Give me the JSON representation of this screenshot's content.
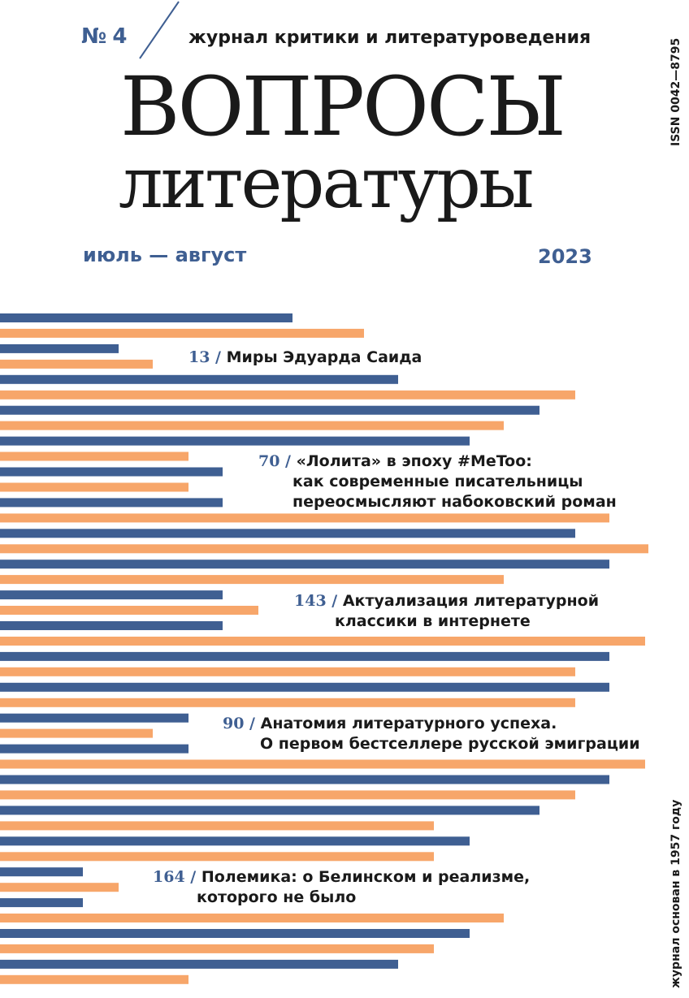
{
  "header": {
    "issue": "№ 4",
    "subtitle": "журнал критики и литературоведения",
    "title_line1": "ВОПРОСЫ",
    "title_line2": "литературы",
    "months": "июль — август",
    "year": "2023"
  },
  "side": {
    "issn": "ISSN 0042—8795",
    "founded": "журнал основан в 1957 году"
  },
  "colors": {
    "blue": "#3f5f92",
    "orange": "#f7a66a",
    "text": "#1a1a1a"
  },
  "bar_lengths": [
    360,
    448,
    146,
    188,
    490,
    708,
    664,
    620,
    578,
    232,
    274,
    232,
    274,
    750,
    708,
    798,
    750,
    620,
    274,
    318,
    274,
    794,
    750,
    708,
    750,
    708,
    232,
    188,
    232,
    794,
    750,
    708,
    664,
    534,
    578,
    534,
    102,
    146,
    102,
    620,
    578,
    534,
    490,
    232
  ],
  "contents": [
    {
      "page": "13 /",
      "lines": [
        "Миры Эдуарда Саида"
      ]
    },
    {
      "page": "70 /",
      "lines": [
        "«Лолита» в эпоху #MeToo:",
        "как современные писательницы",
        "переосмысляют набоковский роман"
      ]
    },
    {
      "page": "143 /",
      "lines": [
        "Актуализация литературной",
        "классики в интернете"
      ]
    },
    {
      "page": "90 /",
      "lines": [
        "Анатомия литературного успеха.",
        "О первом бестселлере русской эмиграции"
      ]
    },
    {
      "page": "164 /",
      "lines": [
        "Полемика: о Белинском и реализме,",
        "которого не было"
      ]
    }
  ]
}
